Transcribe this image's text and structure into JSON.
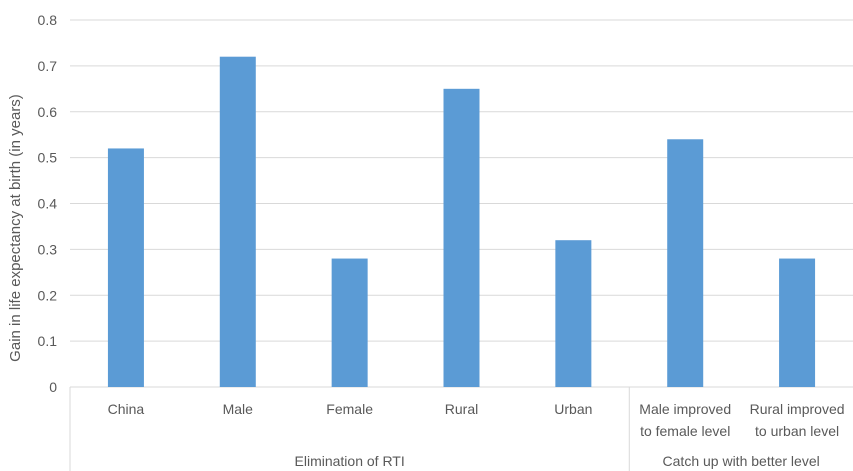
{
  "chart_data": {
    "type": "bar",
    "ylabel": "Gain in life expectancy at birth (in years)",
    "ylim": [
      0,
      0.8
    ],
    "yticks": [
      "0",
      "0.1",
      "0.2",
      "0.3",
      "0.4",
      "0.5",
      "0.6",
      "0.7",
      "0.8"
    ],
    "grid": true,
    "bar_color": "#5B9BD5",
    "categories": [
      {
        "line1": "China",
        "line2": ""
      },
      {
        "line1": "Male",
        "line2": ""
      },
      {
        "line1": "Female",
        "line2": ""
      },
      {
        "line1": "Rural",
        "line2": ""
      },
      {
        "line1": "Urban",
        "line2": ""
      },
      {
        "line1": "Male improved",
        "line2": "to female level"
      },
      {
        "line1": "Rural improved",
        "line2": "to urban level"
      }
    ],
    "values": [
      0.52,
      0.72,
      0.28,
      0.65,
      0.32,
      0.54,
      0.28
    ],
    "groups": [
      {
        "label": "Elimination of RTI",
        "count": 5
      },
      {
        "label": "Catch up with better level",
        "count": 2
      }
    ]
  }
}
